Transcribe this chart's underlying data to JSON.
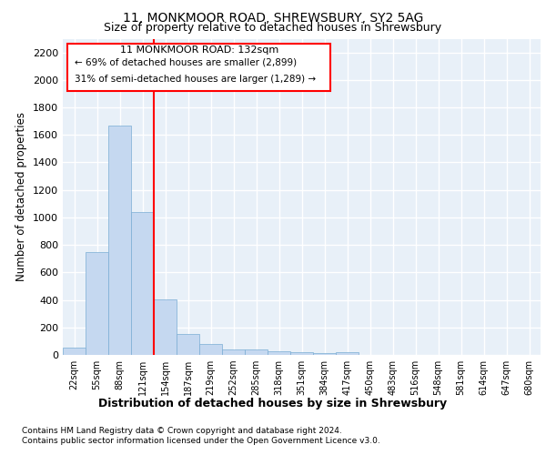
{
  "title1": "11, MONKMOOR ROAD, SHREWSBURY, SY2 5AG",
  "title2": "Size of property relative to detached houses in Shrewsbury",
  "xlabel": "Distribution of detached houses by size in Shrewsbury",
  "ylabel": "Number of detached properties",
  "bin_labels": [
    "22sqm",
    "55sqm",
    "88sqm",
    "121sqm",
    "154sqm",
    "187sqm",
    "219sqm",
    "252sqm",
    "285sqm",
    "318sqm",
    "351sqm",
    "384sqm",
    "417sqm",
    "450sqm",
    "483sqm",
    "516sqm",
    "548sqm",
    "581sqm",
    "614sqm",
    "647sqm",
    "680sqm"
  ],
  "bar_values": [
    50,
    745,
    1670,
    1040,
    405,
    150,
    80,
    42,
    38,
    28,
    18,
    12,
    20,
    0,
    0,
    0,
    0,
    0,
    0,
    0,
    0
  ],
  "bar_color": "#c5d8f0",
  "bar_edgecolor": "#7aadd4",
  "ylim": [
    0,
    2300
  ],
  "yticks": [
    0,
    200,
    400,
    600,
    800,
    1000,
    1200,
    1400,
    1600,
    1800,
    2000,
    2200
  ],
  "annotation_line1": "11 MONKMOOR ROAD: 132sqm",
  "annotation_line2": "← 69% of detached houses are smaller (2,899)",
  "annotation_line3": "31% of semi-detached houses are larger (1,289) →",
  "footnote1": "Contains HM Land Registry data © Crown copyright and database right 2024.",
  "footnote2": "Contains public sector information licensed under the Open Government Licence v3.0.",
  "bg_color": "#e8f0f8",
  "grid_color": "#ffffff",
  "red_line_x": 3.5
}
